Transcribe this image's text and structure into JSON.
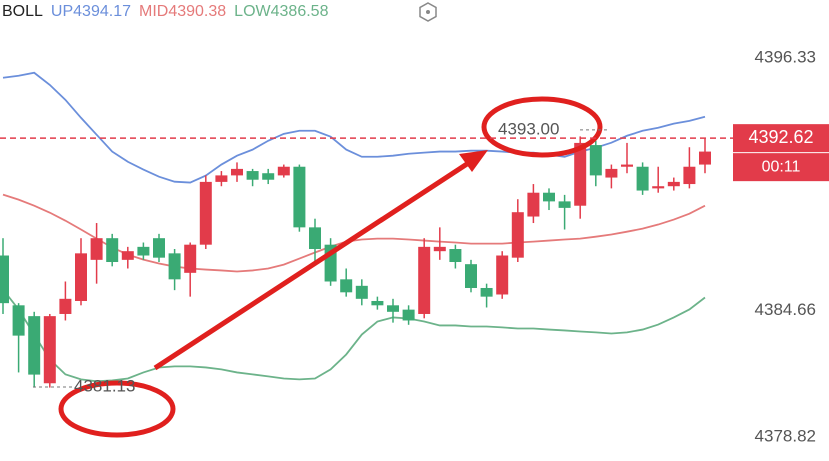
{
  "chart_data": {
    "type": "candlestick",
    "indicator": "BOLL",
    "ylim": [
      4377.71,
      4399.0
    ],
    "yticks": [
      4396.33,
      4384.66,
      4378.82
    ],
    "up_color": "#e23b4a",
    "down_color": "#3aaa74",
    "candles": {
      "open": [
        4387.2,
        4384.9,
        4384.4,
        4381.3,
        4384.5,
        4385.1,
        4387.0,
        4388.0,
        4387.0,
        4387.6,
        4388.0,
        4387.3,
        4386.4,
        4387.7,
        4390.6,
        4390.9,
        4391.1,
        4391.0,
        4390.9,
        4391.3,
        4388.5,
        4387.7,
        4386.1,
        4385.8,
        4385.1,
        4384.9,
        4384.7,
        4384.5,
        4387.4,
        4387.5,
        4386.8,
        4385.7,
        4385.4,
        4387.1,
        4389.0,
        4390.1,
        4389.7,
        4389.5,
        4392.3,
        4390.8,
        4391.3,
        4391.3,
        4390.3,
        4390.4,
        4390.5,
        4391.4
      ],
      "high": [
        4388.0,
        4385.0,
        4384.6,
        4384.5,
        4386.0,
        4388.0,
        4388.7,
        4388.2,
        4387.6,
        4387.8,
        4388.2,
        4387.5,
        4387.8,
        4390.9,
        4391.1,
        4391.5,
        4391.2,
        4391.2,
        4391.4,
        4391.4,
        4388.9,
        4388.0,
        4386.6,
        4386.1,
        4385.3,
        4385.2,
        4384.9,
        4388.0,
        4388.5,
        4387.7,
        4387.0,
        4385.9,
        4387.4,
        4389.8,
        4390.5,
        4390.3,
        4390.0,
        4392.7,
        4392.5,
        4391.4,
        4392.4,
        4391.5,
        4391.3,
        4390.8,
        4392.2,
        4392.6
      ],
      "low": [
        4384.5,
        4381.8,
        4381.1,
        4381.1,
        4384.2,
        4384.9,
        4385.9,
        4386.7,
        4386.6,
        4387.0,
        4386.9,
        4385.6,
        4385.3,
        4387.5,
        4390.4,
        4390.6,
        4390.4,
        4390.5,
        4390.8,
        4388.3,
        4386.9,
        4385.8,
        4385.3,
        4384.9,
        4384.7,
        4384.1,
        4384.0,
        4384.3,
        4387.0,
        4386.6,
        4385.5,
        4384.8,
        4385.2,
        4386.9,
        4388.7,
        4389.3,
        4388.4,
        4388.9,
        4390.4,
        4390.3,
        4391.0,
        4390.0,
        4390.1,
        4390.2,
        4390.3,
        4391.0
      ],
      "close": [
        4385.0,
        4383.5,
        4381.7,
        4384.4,
        4385.2,
        4387.3,
        4388.0,
        4386.9,
        4387.4,
        4387.2,
        4387.1,
        4386.1,
        4387.7,
        4390.6,
        4390.9,
        4391.2,
        4390.7,
        4390.7,
        4391.3,
        4388.5,
        4387.5,
        4386.0,
        4385.5,
        4385.2,
        4384.9,
        4384.6,
        4384.2,
        4387.6,
        4387.6,
        4386.9,
        4385.7,
        4385.3,
        4387.2,
        4389.2,
        4390.1,
        4389.7,
        4389.4,
        4392.4,
        4390.9,
        4391.2,
        4391.4,
        4390.2,
        4390.4,
        4390.6,
        4391.3,
        4392.0
      ]
    },
    "series": [
      {
        "name": "UP",
        "latest": 4394.17,
        "color": "#6b8fdb",
        "values": [
          4395.41,
          4395.5,
          4395.64,
          4395.08,
          4394.39,
          4393.56,
          4392.78,
          4392.0,
          4391.53,
          4391.17,
          4390.84,
          4390.61,
          4390.57,
          4390.89,
          4391.4,
          4391.81,
          4392.09,
          4392.5,
          4392.82,
          4392.96,
          4392.96,
          4392.69,
          4392.09,
          4391.76,
          4391.76,
          4391.81,
          4391.9,
          4391.95,
          4392.0,
          4392.0,
          4392.04,
          4392.04,
          4392.0,
          4391.95,
          4391.95,
          4391.86,
          4391.76,
          4392.0,
          4392.18,
          4392.41,
          4392.73,
          4392.96,
          4393.1,
          4393.29,
          4393.42,
          4393.61
        ]
      },
      {
        "name": "MID",
        "latest": 4390.38,
        "color": "#e57a7a",
        "values": [
          4390.01,
          4389.78,
          4389.5,
          4389.18,
          4388.81,
          4388.4,
          4387.98,
          4387.57,
          4387.24,
          4387.01,
          4386.83,
          4386.69,
          4386.6,
          4386.55,
          4386.51,
          4386.46,
          4386.51,
          4386.6,
          4386.78,
          4387.06,
          4387.34,
          4387.61,
          4387.84,
          4387.94,
          4387.98,
          4387.98,
          4387.94,
          4387.89,
          4387.84,
          4387.8,
          4387.75,
          4387.75,
          4387.75,
          4387.8,
          4387.84,
          4387.89,
          4387.94,
          4387.98,
          4388.07,
          4388.17,
          4388.3,
          4388.44,
          4388.63,
          4388.86,
          4389.13,
          4389.5
        ]
      },
      {
        "name": "LOW",
        "latest": 4386.58,
        "color": "#6cb38a",
        "values": [
          4385.63,
          4384.71,
          4383.55,
          4382.4,
          4381.71,
          4381.48,
          4381.39,
          4381.43,
          4381.52,
          4381.8,
          4382.03,
          4382.08,
          4382.08,
          4382.03,
          4381.94,
          4381.8,
          4381.71,
          4381.62,
          4381.52,
          4381.48,
          4381.52,
          4381.94,
          4382.63,
          4383.55,
          4384.15,
          4384.34,
          4384.29,
          4384.15,
          4383.97,
          4383.97,
          4383.92,
          4383.92,
          4383.88,
          4383.83,
          4383.83,
          4383.78,
          4383.74,
          4383.69,
          4383.65,
          4383.6,
          4383.65,
          4383.78,
          4384.01,
          4384.34,
          4384.71,
          4385.26
        ]
      }
    ],
    "last_price": 4392.62,
    "countdown": "00:11",
    "annotations": [
      {
        "value": 4393,
        "label": "4393.00"
      },
      4381.13
    ]
  }
}
